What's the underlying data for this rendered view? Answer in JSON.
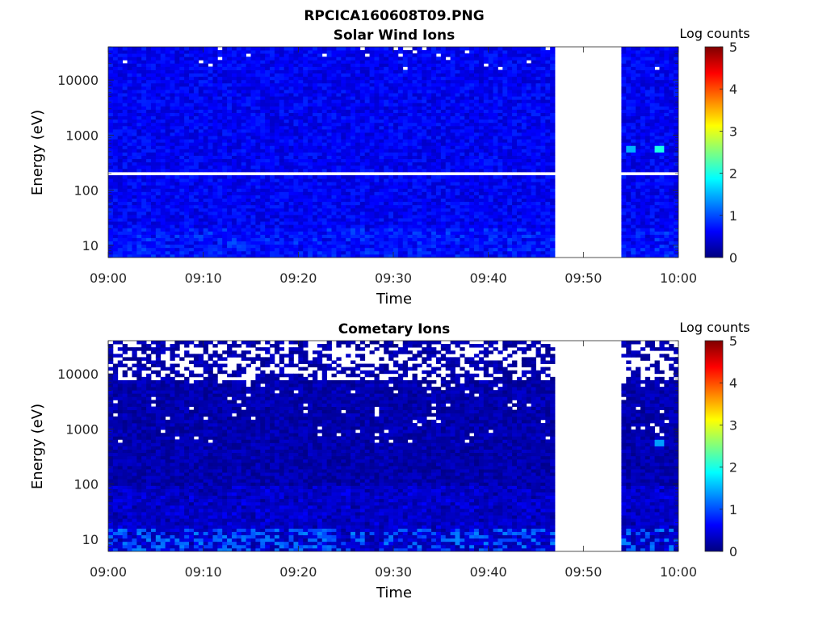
{
  "figure": {
    "title": "RPCICA160608T09.PNG"
  },
  "colormap": {
    "name": "jet",
    "stops": [
      "#00007f",
      "#0000ff",
      "#007fff",
      "#00ffff",
      "#7fff7f",
      "#ffff00",
      "#ff7f00",
      "#ff0000",
      "#7f0000"
    ]
  },
  "chart_data": [
    {
      "type": "heatmap",
      "title": "Solar Wind Ions",
      "xlabel": "Time",
      "ylabel": "Energy (eV)",
      "x_ticks": [
        "09:00",
        "09:10",
        "09:20",
        "09:30",
        "09:40",
        "09:50",
        "10:00"
      ],
      "x_range": [
        "09:00",
        "10:00"
      ],
      "y_scale": "log",
      "y_range": [
        6,
        40000
      ],
      "y_ticks": [
        10,
        100,
        1000,
        10000
      ],
      "y_tick_labels": [
        "10",
        "100",
        "1000",
        "10000"
      ],
      "colorbar": {
        "label": "Log counts",
        "range": [
          0,
          5
        ],
        "ticks": [
          "0",
          "1",
          "2",
          "3",
          "4",
          "5"
        ]
      },
      "data_gaps": [
        {
          "start": "09:47",
          "end": "09:54"
        }
      ],
      "empty_energy_bins": [
        200
      ],
      "typical_level": 0.6,
      "hotspots": [
        {
          "time": "09:55",
          "energy": 560,
          "value": 1.5
        },
        {
          "time": "09:58",
          "energy": 560,
          "value": 2.0
        }
      ]
    },
    {
      "type": "heatmap",
      "title": "Cometary Ions",
      "xlabel": "Time",
      "ylabel": "Energy (eV)",
      "x_ticks": [
        "09:00",
        "09:10",
        "09:20",
        "09:30",
        "09:40",
        "09:50",
        "10:00"
      ],
      "x_range": [
        "09:00",
        "10:00"
      ],
      "y_scale": "log",
      "y_range": [
        6,
        40000
      ],
      "y_ticks": [
        10,
        100,
        1000,
        10000
      ],
      "y_tick_labels": [
        "10",
        "100",
        "1000",
        "10000"
      ],
      "colorbar": {
        "label": "Log counts",
        "range": [
          0,
          5
        ],
        "ticks": [
          "0",
          "1",
          "2",
          "3",
          "4",
          "5"
        ]
      },
      "data_gaps": [
        {
          "start": "09:47",
          "end": "09:54"
        }
      ],
      "empty_energy_bins": [],
      "typical_level": 0.15,
      "low_energy_peak": {
        "energy_max": 15,
        "value": 1.3
      },
      "hotspots": [
        {
          "time": "09:58",
          "energy": 560,
          "value": 1.4
        }
      ]
    }
  ]
}
